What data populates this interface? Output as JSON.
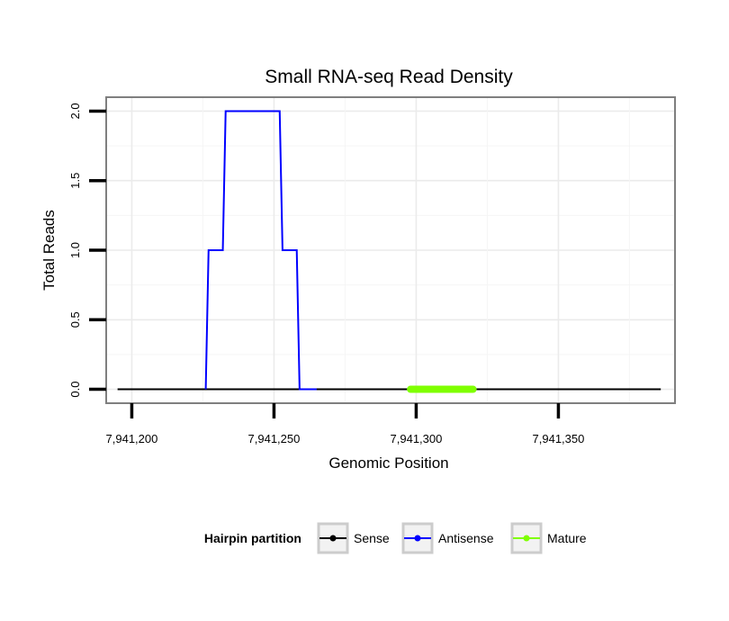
{
  "chart_data": {
    "type": "line",
    "title": "Small RNA-seq Read Density",
    "xlabel": "Genomic Position",
    "ylabel": "Total Reads",
    "xlim": [
      7941191,
      7941391
    ],
    "ylim": [
      -0.1,
      2.1
    ],
    "x_ticks": [
      7941200,
      7941250,
      7941300,
      7941350
    ],
    "x_tick_labels": [
      "7,941,200",
      "7,941,250",
      "7,941,300",
      "7,941,350"
    ],
    "y_ticks": [
      0,
      0.5,
      1,
      1.5,
      2
    ],
    "y_tick_labels": [
      "0.0",
      "0.5",
      "1.0",
      "1.5",
      "2.0"
    ],
    "grid": true,
    "legend_position": "bottom",
    "legend_title": "Hairpin partition",
    "series": [
      {
        "name": "Sense",
        "color": "#000000",
        "width": "normal",
        "x": [
          7941195,
          7941386
        ],
        "y": [
          0,
          0
        ]
      },
      {
        "name": "Antisense",
        "color": "#0000ff",
        "width": "normal",
        "x": [
          7941226,
          7941227,
          7941232,
          7941233,
          7941239,
          7941240,
          7941252,
          7941253,
          7941258,
          7941259,
          7941265
        ],
        "y": [
          0,
          1,
          1,
          2,
          2,
          2,
          2,
          1,
          1,
          0,
          0
        ]
      },
      {
        "name": "Mature",
        "color": "#7fff00",
        "width": "thick",
        "x": [
          7941298,
          7941320
        ],
        "y": [
          0,
          0
        ]
      }
    ]
  }
}
